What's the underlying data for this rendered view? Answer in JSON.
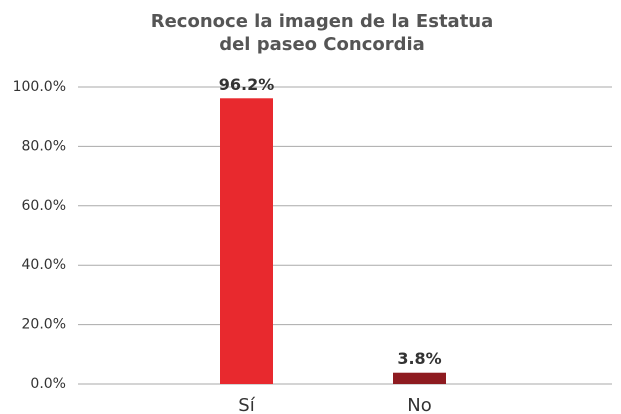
{
  "chart_data": {
    "type": "bar",
    "title": [
      "Reconoce la imagen de la Estatua",
      "del paseo Concordia"
    ],
    "categories": [
      "Sí",
      "No"
    ],
    "values": [
      96.2,
      3.8
    ],
    "value_labels": [
      "96.2%",
      "3.8%"
    ],
    "colors": [
      "#e8292e",
      "#8e1b20"
    ],
    "ylim": [
      0,
      100
    ],
    "yticks": [
      {
        "value": 0,
        "label": "0.0%"
      },
      {
        "value": 20,
        "label": "20.0%"
      },
      {
        "value": 40,
        "label": "40.0%"
      },
      {
        "value": 60,
        "label": "60.0%"
      },
      {
        "value": 80,
        "label": "80.0%"
      },
      {
        "value": 100,
        "label": "100.0%"
      }
    ],
    "grid": true
  }
}
